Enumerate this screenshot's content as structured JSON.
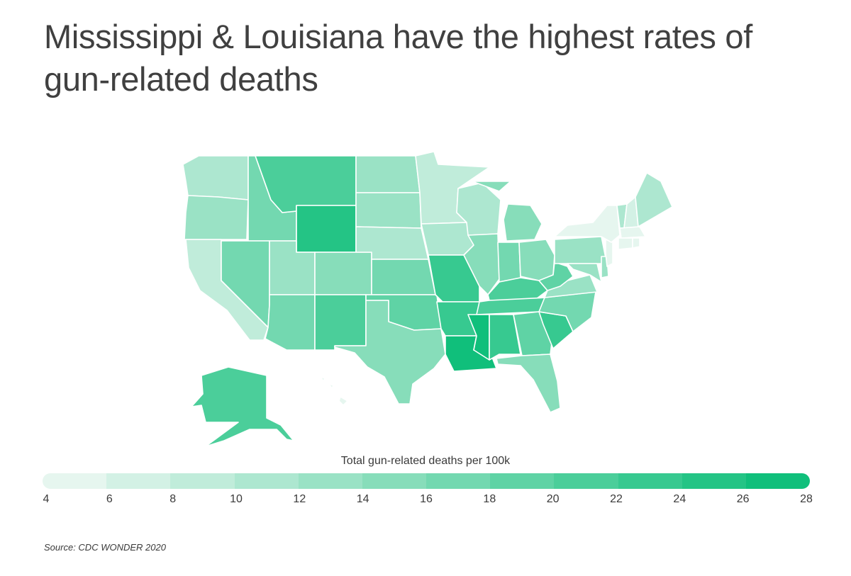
{
  "title": "Mississippi & Louisiana have the highest rates of gun-related deaths",
  "legend": {
    "title": "Total gun-related deaths per 100k",
    "ticks": [
      "4",
      "6",
      "8",
      "10",
      "12",
      "14",
      "16",
      "18",
      "20",
      "22",
      "24",
      "26",
      "28"
    ],
    "bin_colors": [
      "#e6f6ef",
      "#d3f1e5",
      "#c0ecda",
      "#ade7d0",
      "#9ae2c5",
      "#87ddba",
      "#73d8b0",
      "#5fd3a5",
      "#4bce9a",
      "#37c990",
      "#24c485",
      "#10bf7b"
    ]
  },
  "source": "Source:  CDC WONDER 2020",
  "map_data": {
    "metric": "Total gun-related deaths per 100k",
    "states": [
      {
        "state": "Washington",
        "bin": "10-12"
      },
      {
        "state": "Oregon",
        "bin": "12-14"
      },
      {
        "state": "California",
        "bin": "8-10"
      },
      {
        "state": "Idaho",
        "bin": "16-18"
      },
      {
        "state": "Nevada",
        "bin": "16-18"
      },
      {
        "state": "Montana",
        "bin": "20-22"
      },
      {
        "state": "Wyoming",
        "bin": "24-26"
      },
      {
        "state": "Utah",
        "bin": "12-14"
      },
      {
        "state": "Colorado",
        "bin": "14-16"
      },
      {
        "state": "Arizona",
        "bin": "16-18"
      },
      {
        "state": "New Mexico",
        "bin": "20-22"
      },
      {
        "state": "North Dakota",
        "bin": "12-14"
      },
      {
        "state": "South Dakota",
        "bin": "12-14"
      },
      {
        "state": "Nebraska",
        "bin": "10-12"
      },
      {
        "state": "Kansas",
        "bin": "16-18"
      },
      {
        "state": "Oklahoma",
        "bin": "18-20"
      },
      {
        "state": "Texas",
        "bin": "14-16"
      },
      {
        "state": "Minnesota",
        "bin": "8-10"
      },
      {
        "state": "Iowa",
        "bin": "10-12"
      },
      {
        "state": "Missouri",
        "bin": "22-24"
      },
      {
        "state": "Arkansas",
        "bin": "22-24"
      },
      {
        "state": "Louisiana",
        "bin": "26-28"
      },
      {
        "state": "Wisconsin",
        "bin": "10-12"
      },
      {
        "state": "Illinois",
        "bin": "14-16"
      },
      {
        "state": "Michigan",
        "bin": "14-16"
      },
      {
        "state": "Indiana",
        "bin": "16-18"
      },
      {
        "state": "Ohio",
        "bin": "14-16"
      },
      {
        "state": "Kentucky",
        "bin": "20-22"
      },
      {
        "state": "Tennessee",
        "bin": "20-22"
      },
      {
        "state": "Mississippi",
        "bin": "26-28"
      },
      {
        "state": "Alabama",
        "bin": "22-24"
      },
      {
        "state": "Georgia",
        "bin": "18-20"
      },
      {
        "state": "Florida",
        "bin": "14-16"
      },
      {
        "state": "South Carolina",
        "bin": "22-24"
      },
      {
        "state": "North Carolina",
        "bin": "16-18"
      },
      {
        "state": "Virginia",
        "bin": "12-14"
      },
      {
        "state": "West Virginia",
        "bin": "18-20"
      },
      {
        "state": "Pennsylvania",
        "bin": "12-14"
      },
      {
        "state": "New York",
        "bin": "4-6"
      },
      {
        "state": "Vermont",
        "bin": "10-12"
      },
      {
        "state": "New Hampshire",
        "bin": "6-8"
      },
      {
        "state": "Maine",
        "bin": "10-12"
      },
      {
        "state": "Massachusetts",
        "bin": "4-6"
      },
      {
        "state": "Connecticut",
        "bin": "4-6"
      },
      {
        "state": "Rhode Island",
        "bin": "4-6"
      },
      {
        "state": "New Jersey",
        "bin": "4-6"
      },
      {
        "state": "Delaware",
        "bin": "12-14"
      },
      {
        "state": "Maryland",
        "bin": "12-14"
      },
      {
        "state": "Alaska",
        "bin": "20-22"
      },
      {
        "state": "Hawaii",
        "bin": "4-6"
      }
    ]
  }
}
